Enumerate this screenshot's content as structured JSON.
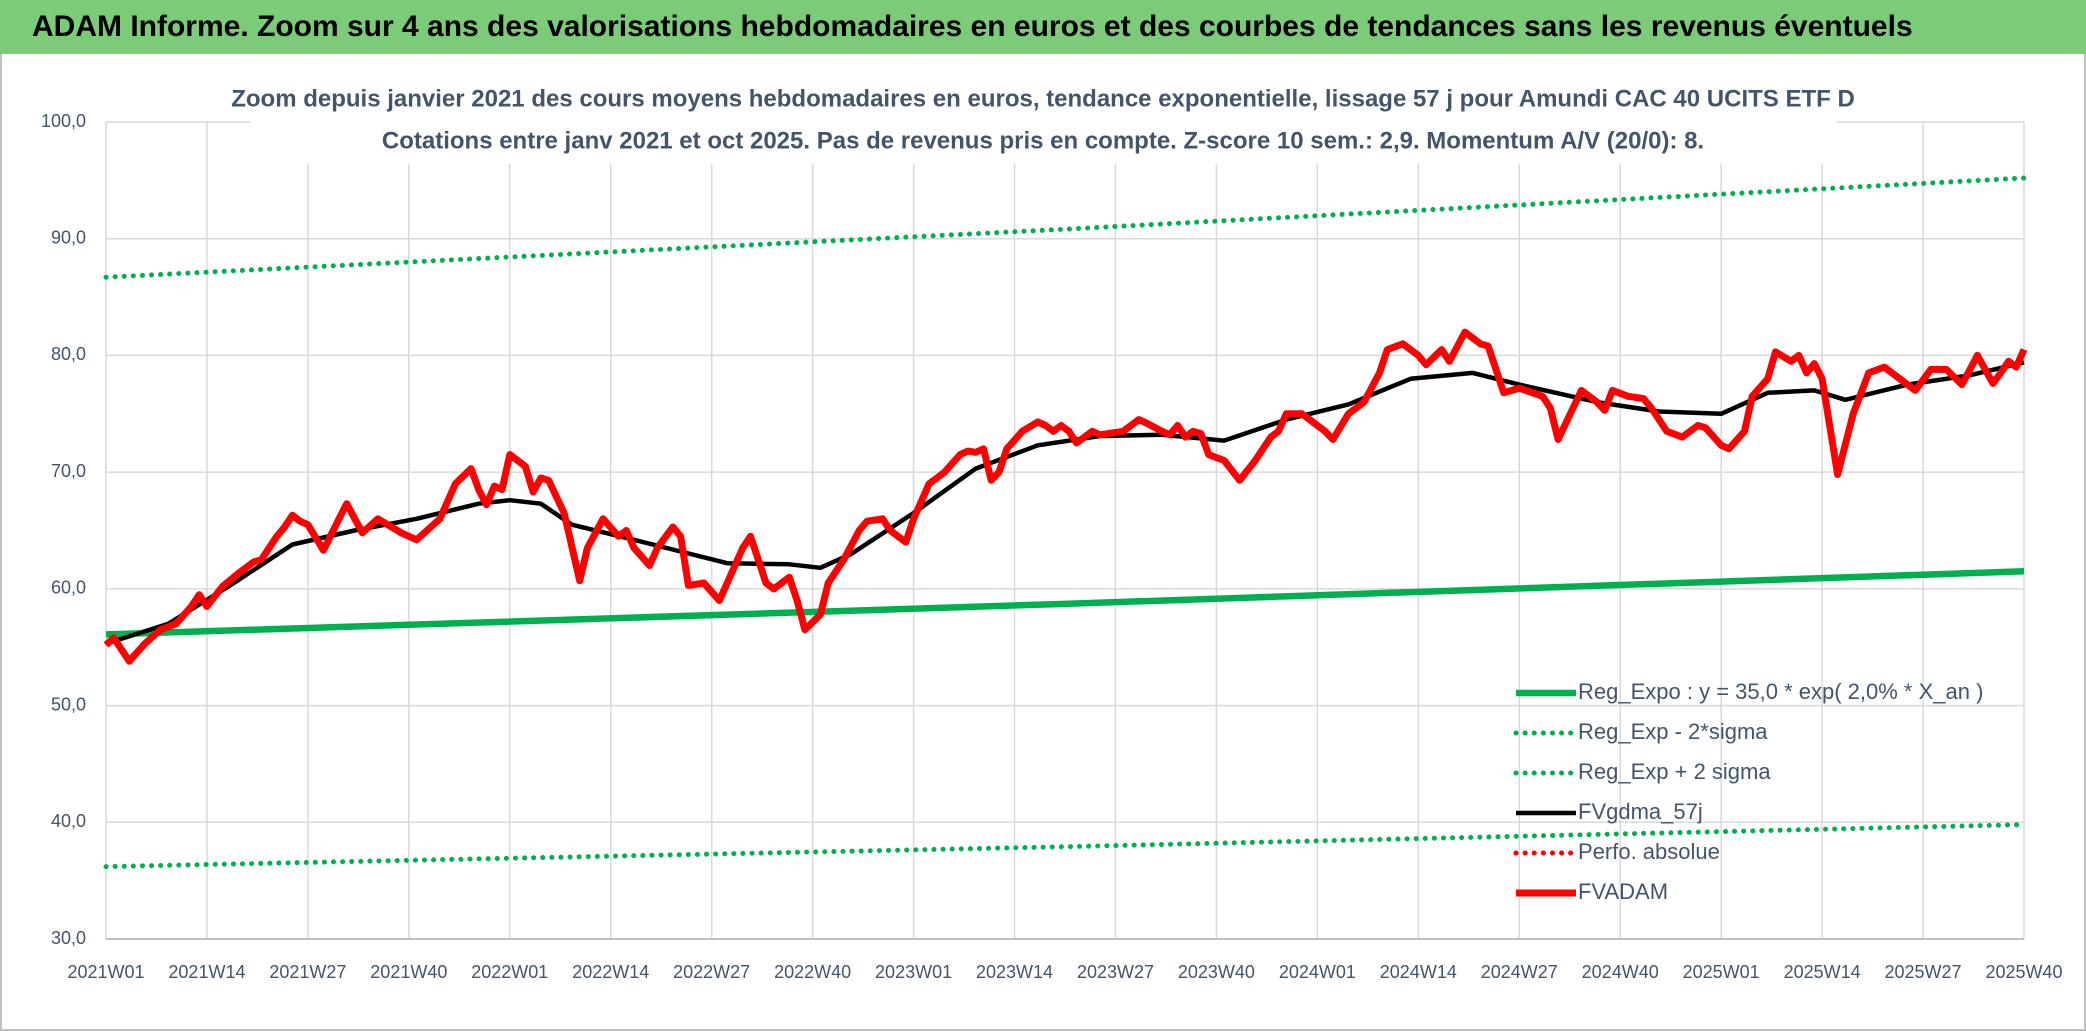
{
  "header": {
    "title": "ADAM Informe. Zoom sur 4 ans des valorisations hebdomadaires en euros et des courbes de tendances sans les revenus éventuels"
  },
  "chart_data": {
    "type": "line",
    "title": "Zoom depuis janvier 2021 des cours moyens hebdomadaires en euros, tendance exponentielle, lissage 57 j pour Amundi CAC 40 UCITS ETF D",
    "subtitle": "Cotations entre janv 2021 et oct 2025. Pas de revenus pris en compte. Z-score 10 sem.: 2,9. Momentum A/V (20/0): 8.",
    "xlim": [
      0,
      247
    ],
    "xticks": [
      {
        "value": 0,
        "label": "2021W01"
      },
      {
        "value": 13,
        "label": "2021W14"
      },
      {
        "value": 26,
        "label": "2021W27"
      },
      {
        "value": 39,
        "label": "2021W40"
      },
      {
        "value": 52,
        "label": "2022W01"
      },
      {
        "value": 65,
        "label": "2022W14"
      },
      {
        "value": 78,
        "label": "2022W27"
      },
      {
        "value": 91,
        "label": "2022W40"
      },
      {
        "value": 104,
        "label": "2023W01"
      },
      {
        "value": 117,
        "label": "2023W14"
      },
      {
        "value": 130,
        "label": "2023W27"
      },
      {
        "value": 143,
        "label": "2023W40"
      },
      {
        "value": 156,
        "label": "2024W01"
      },
      {
        "value": 169,
        "label": "2024W14"
      },
      {
        "value": 182,
        "label": "2024W27"
      },
      {
        "value": 195,
        "label": "2024W40"
      },
      {
        "value": 208,
        "label": "2025W01"
      },
      {
        "value": 221,
        "label": "2025W14"
      },
      {
        "value": 234,
        "label": "2025W27"
      },
      {
        "value": 247,
        "label": "2025W40"
      }
    ],
    "ylim": [
      30,
      100
    ],
    "yticks": [
      {
        "value": 30,
        "label": "30,0"
      },
      {
        "value": 40,
        "label": "40,0"
      },
      {
        "value": 50,
        "label": "50,0"
      },
      {
        "value": 60,
        "label": "60,0"
      },
      {
        "value": 70,
        "label": "70,0"
      },
      {
        "value": 80,
        "label": "80,0"
      },
      {
        "value": 90,
        "label": "90,0"
      },
      {
        "value": 100,
        "label": "100,0"
      }
    ],
    "grid": true,
    "legend": "bottom-right",
    "series": [
      {
        "name": "Reg_Expo : y = 35,0 * exp( 2,0% *  X_an )",
        "color": "#00b050",
        "style": "solid",
        "x": [
          0,
          123,
          247
        ],
        "values": [
          56.1,
          58.7,
          61.5
        ]
      },
      {
        "name": "Reg_Exp - 2*sigma",
        "color": "#00b050",
        "style": "dotted",
        "x": [
          0,
          123,
          247
        ],
        "values": [
          36.2,
          37.9,
          39.8
        ]
      },
      {
        "name": "Reg_Exp + 2 sigma",
        "color": "#00b050",
        "style": "dotted",
        "x": [
          0,
          123,
          247
        ],
        "values": [
          86.7,
          90.8,
          95.2
        ]
      },
      {
        "name": "FVgdma_57j",
        "color": "#000000",
        "style": "solid",
        "x": [
          0,
          8,
          16,
          24,
          32,
          40,
          48,
          52,
          56,
          60,
          68,
          74,
          80,
          88,
          92,
          96,
          104,
          112,
          120,
          128,
          136,
          144,
          152,
          160,
          168,
          176,
          182,
          192,
          200,
          208,
          214,
          220,
          224,
          232,
          240,
          247
        ],
        "values": [
          55.3,
          57,
          60.3,
          63.8,
          65,
          66,
          67.3,
          67.6,
          67.3,
          65.5,
          64.2,
          63.2,
          62.2,
          62.1,
          61.8,
          63,
          66.5,
          70.3,
          72.3,
          73.1,
          73.2,
          72.7,
          74.5,
          75.8,
          78,
          78.5,
          77.5,
          76,
          75.2,
          75,
          76.8,
          77,
          76.2,
          77.5,
          78.3,
          79.4
        ]
      },
      {
        "name": "Perfo. absolue",
        "color": "#ff0000",
        "style": "dotted",
        "x": [],
        "values": []
      },
      {
        "name": "FVADAM",
        "color": "#ff0000",
        "style": "thick",
        "x": [
          0,
          1,
          3,
          5,
          7,
          9,
          11,
          12,
          13,
          15,
          17,
          19,
          20,
          21,
          22,
          23,
          24,
          25,
          26,
          28,
          30,
          31,
          33,
          35,
          38,
          40,
          43,
          45,
          47,
          48,
          49,
          50,
          51,
          52,
          54,
          55,
          56,
          57,
          59,
          61,
          62,
          64,
          66,
          67,
          68,
          70,
          71,
          73,
          74,
          75,
          77,
          79,
          80,
          82,
          83,
          85,
          86,
          88,
          89,
          90,
          92,
          93,
          95,
          97,
          98,
          100,
          101,
          103,
          104,
          106,
          107,
          108,
          110,
          111,
          112,
          113,
          114,
          115,
          116,
          118,
          120,
          121,
          122,
          123,
          124,
          125,
          127,
          128,
          131,
          133,
          134,
          136,
          137,
          138,
          139,
          140,
          141,
          142,
          144,
          146,
          148,
          150,
          151,
          152,
          154,
          155,
          157,
          158,
          160,
          162,
          164,
          165,
          167,
          169,
          170,
          172,
          173,
          175,
          177,
          178,
          180,
          182,
          185,
          186,
          187,
          190,
          192,
          193,
          194,
          196,
          198,
          199,
          201,
          203,
          205,
          206,
          208,
          209,
          211,
          212,
          214,
          215,
          217,
          218,
          219,
          220,
          221,
          223,
          225,
          227,
          229,
          231,
          233,
          235,
          237,
          239,
          241,
          243,
          244,
          245,
          246,
          247
        ],
        "values": [
          55.2,
          55.8,
          53.8,
          55.3,
          56.5,
          57,
          58.5,
          59.5,
          58.5,
          60.2,
          61.3,
          62.3,
          62.5,
          63.5,
          64.5,
          65.3,
          66.3,
          65.8,
          65.5,
          63.3,
          66,
          67.3,
          64.8,
          66,
          64.8,
          64.2,
          66,
          69,
          70.3,
          68.5,
          67.2,
          68.8,
          68.5,
          71.5,
          70.5,
          68.3,
          69.5,
          69.3,
          66.5,
          60.7,
          63.5,
          66,
          64.5,
          65,
          63.5,
          62,
          63.5,
          65.3,
          64.5,
          60.3,
          60.5,
          59,
          60.5,
          63.5,
          64.5,
          60.5,
          60,
          61,
          59,
          56.5,
          57.8,
          60.5,
          62.5,
          65,
          65.8,
          66,
          65,
          64,
          66,
          69,
          69.5,
          70,
          71.5,
          71.8,
          71.7,
          72,
          69.3,
          70,
          72,
          73.5,
          74.3,
          74,
          73.5,
          74,
          73.5,
          72.5,
          73.5,
          73.2,
          73.5,
          74.5,
          74.2,
          73.5,
          73.2,
          74,
          73,
          73.5,
          73.3,
          71.5,
          71,
          69.3,
          71,
          73,
          73.5,
          75,
          75,
          74.5,
          73.5,
          72.8,
          75,
          76,
          78.5,
          80.5,
          81,
          80,
          79.2,
          80.5,
          79.5,
          82,
          81,
          80.8,
          76.8,
          77.2,
          76.5,
          75.5,
          72.8,
          77,
          76,
          75.3,
          77,
          76.5,
          76.3,
          75.5,
          73.5,
          73,
          74,
          73.8,
          72.3,
          72,
          73.5,
          76.5,
          78,
          80.3,
          79.5,
          80,
          78.5,
          79.3,
          78,
          69.8,
          75,
          78.5,
          79,
          78,
          77,
          78.8,
          78.8,
          77.5,
          80,
          77.6,
          78.5,
          79.5,
          79,
          80.5
        ]
      }
    ]
  }
}
